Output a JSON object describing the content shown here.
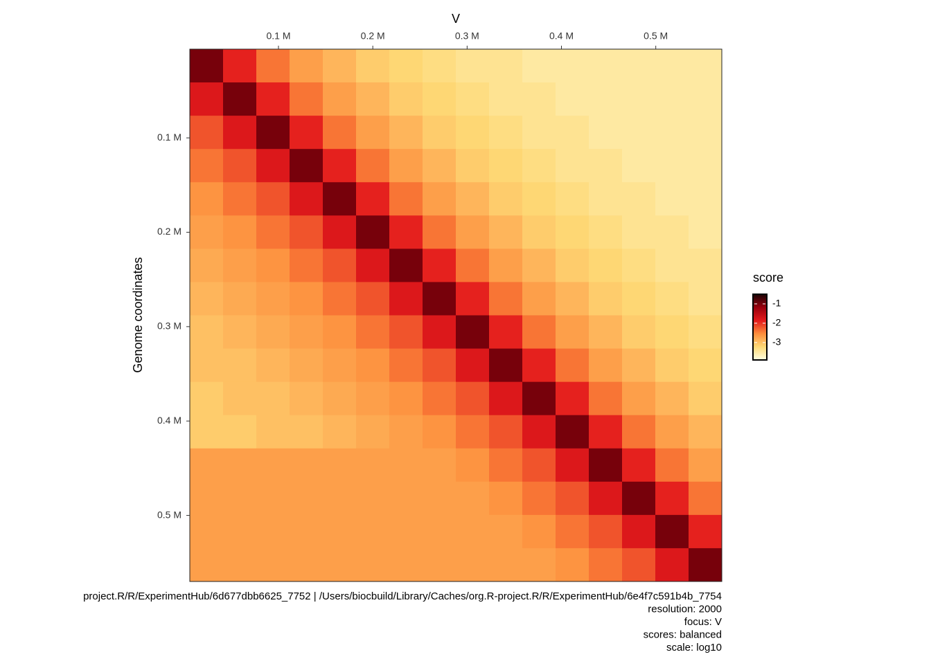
{
  "chart_data": {
    "type": "heatmap",
    "title": "V",
    "y_label": "Genome coordinates",
    "legend_title": "score",
    "caption": [
      "project.R/R/ExperimentHub/6d677dbb6625_7752 | /Users/biocbuild/Library/Caches/org.R-project.R/R/ExperimentHub/6e4f7c591b4b_7754",
      "resolution: 2000",
      "focus: V",
      "scores: balanced",
      "scale: log10"
    ],
    "bins": [
      6000,
      41250,
      76500,
      111750,
      147000,
      182250,
      217500,
      252750,
      288000,
      323250,
      358500,
      393750,
      429000,
      464250,
      499500,
      534750,
      570000
    ],
    "xlim": [
      6000,
      570000
    ],
    "ylim": [
      6000,
      570000
    ],
    "xticks": [
      {
        "value": 100000,
        "label": "0.1 M"
      },
      {
        "value": 200000,
        "label": "0.2 M"
      },
      {
        "value": 300000,
        "label": "0.3 M"
      },
      {
        "value": 400000,
        "label": "0.4 M"
      },
      {
        "value": 500000,
        "label": "0.5 M"
      }
    ],
    "yticks": [
      {
        "value": 100000,
        "label": "0.1 M"
      },
      {
        "value": 200000,
        "label": "0.2 M"
      },
      {
        "value": 300000,
        "label": "0.3 M"
      },
      {
        "value": 400000,
        "label": "0.4 M"
      },
      {
        "value": 500000,
        "label": "0.5 M"
      }
    ],
    "clim": [
      -3.9,
      -0.5
    ],
    "cticks": [
      -1,
      -2,
      -3
    ],
    "colors": [
      "#ffffe0",
      "#fed976",
      "#fd8d3c",
      "#e31a1c",
      "#99000d",
      "#1a0505"
    ],
    "matrix": [
      [
        -1.0,
        -1.9,
        -2.4,
        -2.7,
        -2.9,
        -3.1,
        -3.2,
        -3.3,
        -3.4,
        -3.4,
        -3.5,
        -3.5,
        -3.5,
        -3.5,
        -3.5,
        -3.5
      ],
      [
        -1.8,
        -1.0,
        -1.9,
        -2.4,
        -2.7,
        -2.9,
        -3.1,
        -3.2,
        -3.3,
        -3.4,
        -3.4,
        -3.5,
        -3.5,
        -3.5,
        -3.5,
        -3.5
      ],
      [
        -2.2,
        -1.8,
        -1.0,
        -1.9,
        -2.4,
        -2.7,
        -2.9,
        -3.1,
        -3.2,
        -3.3,
        -3.4,
        -3.4,
        -3.5,
        -3.5,
        -3.5,
        -3.5
      ],
      [
        -2.4,
        -2.2,
        -1.8,
        -1.0,
        -1.9,
        -2.4,
        -2.7,
        -2.9,
        -3.1,
        -3.2,
        -3.3,
        -3.4,
        -3.4,
        -3.5,
        -3.5,
        -3.5
      ],
      [
        -2.6,
        -2.4,
        -2.2,
        -1.8,
        -1.0,
        -1.9,
        -2.4,
        -2.7,
        -2.9,
        -3.1,
        -3.2,
        -3.3,
        -3.4,
        -3.4,
        -3.5,
        -3.5
      ],
      [
        -2.7,
        -2.6,
        -2.4,
        -2.2,
        -1.8,
        -1.0,
        -1.9,
        -2.4,
        -2.7,
        -2.9,
        -3.1,
        -3.2,
        -3.3,
        -3.4,
        -3.4,
        -3.5
      ],
      [
        -2.8,
        -2.7,
        -2.6,
        -2.4,
        -2.2,
        -1.8,
        -1.0,
        -1.9,
        -2.4,
        -2.7,
        -2.9,
        -3.1,
        -3.2,
        -3.3,
        -3.4,
        -3.4
      ],
      [
        -2.9,
        -2.8,
        -2.7,
        -2.6,
        -2.4,
        -2.2,
        -1.8,
        -1.0,
        -1.9,
        -2.4,
        -2.7,
        -2.9,
        -3.1,
        -3.2,
        -3.3,
        -3.4
      ],
      [
        -3.0,
        -2.9,
        -2.8,
        -2.7,
        -2.6,
        -2.4,
        -2.2,
        -1.8,
        -1.0,
        -1.9,
        -2.4,
        -2.7,
        -2.9,
        -3.1,
        -3.2,
        -3.3
      ],
      [
        -3.0,
        -3.0,
        -2.9,
        -2.8,
        -2.7,
        -2.6,
        -2.4,
        -2.2,
        -1.8,
        -1.0,
        -1.9,
        -2.4,
        -2.7,
        -2.9,
        -3.1,
        -3.2
      ],
      [
        -3.1,
        -3.0,
        -3.0,
        -2.9,
        -2.8,
        -2.7,
        -2.6,
        -2.4,
        -2.2,
        -1.8,
        -1.0,
        -1.9,
        -2.4,
        -2.7,
        -2.9,
        -3.1
      ],
      [
        -3.1,
        -3.1,
        -3.0,
        -3.0,
        -2.9,
        -2.8,
        -2.7,
        -2.6,
        -2.4,
        -2.2,
        -1.8,
        -1.0,
        -1.9,
        -2.4,
        -2.7,
        -2.9
      ],
      [
        -2.7,
        -2.7,
        -2.7,
        -2.7,
        -2.7,
        -2.7,
        -2.7,
        -2.7,
        -2.6,
        -2.4,
        -2.2,
        -1.8,
        -1.0,
        -1.9,
        -2.4,
        -2.7
      ],
      [
        -2.7,
        -2.7,
        -2.7,
        -2.7,
        -2.7,
        -2.7,
        -2.7,
        -2.7,
        -2.7,
        -2.6,
        -2.4,
        -2.2,
        -1.8,
        -1.0,
        -1.9,
        -2.4
      ],
      [
        -2.7,
        -2.7,
        -2.7,
        -2.7,
        -2.7,
        -2.7,
        -2.7,
        -2.7,
        -2.7,
        -2.7,
        -2.6,
        -2.4,
        -2.2,
        -1.8,
        -1.0,
        -1.9
      ],
      [
        -2.7,
        -2.7,
        -2.7,
        -2.7,
        -2.7,
        -2.7,
        -2.7,
        -2.7,
        -2.7,
        -2.7,
        -2.7,
        -2.6,
        -2.4,
        -2.2,
        -1.8,
        -1.0
      ]
    ]
  }
}
